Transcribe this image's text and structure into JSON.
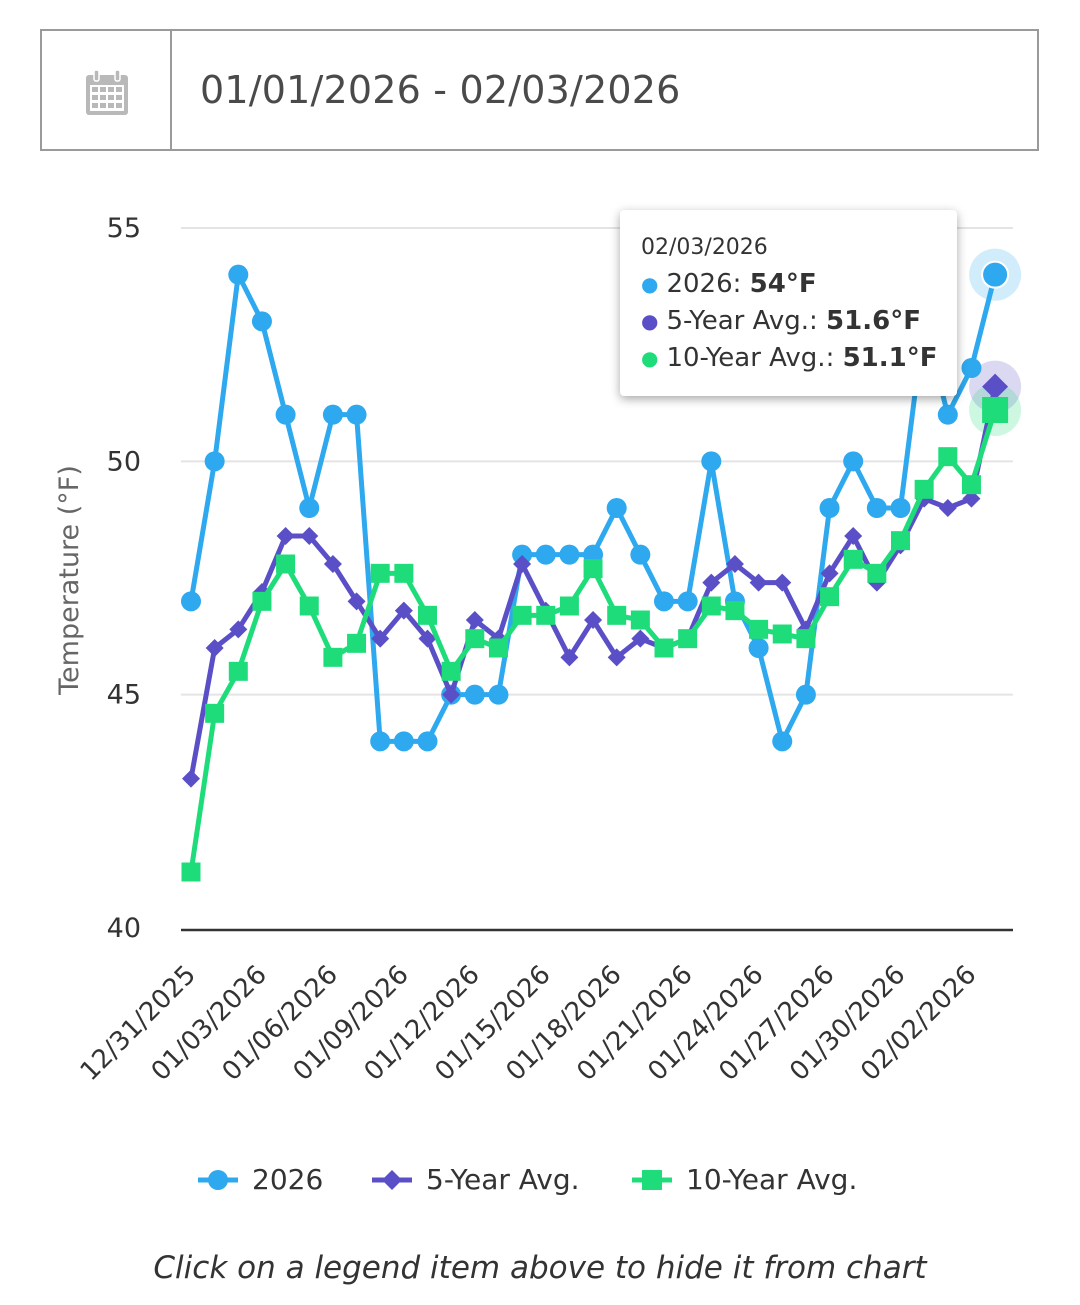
{
  "date_range": {
    "value": "01/01/2026 - 02/03/2026",
    "icon": "calendar-icon"
  },
  "chart_data": {
    "type": "line",
    "ylabel": "Temperature (°F)",
    "xlabel": "",
    "ylim": [
      40,
      55
    ],
    "yticks": [
      40,
      45,
      50,
      55
    ],
    "x": [
      "12/31/2025",
      "01/01/2026",
      "01/02/2026",
      "01/03/2026",
      "01/04/2026",
      "01/05/2026",
      "01/06/2026",
      "01/07/2026",
      "01/08/2026",
      "01/09/2026",
      "01/10/2026",
      "01/11/2026",
      "01/12/2026",
      "01/13/2026",
      "01/14/2026",
      "01/15/2026",
      "01/16/2026",
      "01/17/2026",
      "01/18/2026",
      "01/19/2026",
      "01/20/2026",
      "01/21/2026",
      "01/22/2026",
      "01/23/2026",
      "01/24/2026",
      "01/25/2026",
      "01/26/2026",
      "01/27/2026",
      "01/28/2026",
      "01/29/2026",
      "01/30/2026",
      "01/31/2026",
      "02/01/2026",
      "02/02/2026",
      "02/03/2026"
    ],
    "x_tick_labels": [
      "12/31/2025",
      "01/03/2026",
      "01/06/2026",
      "01/09/2026",
      "01/12/2026",
      "01/15/2026",
      "01/18/2026",
      "01/21/2026",
      "01/24/2026",
      "01/27/2026",
      "01/30/2026",
      "02/02/2026"
    ],
    "series": [
      {
        "name": "2026",
        "color": "#2ea8ee",
        "marker": "circle",
        "values": [
          47,
          50,
          54,
          53,
          51,
          49,
          51,
          51,
          44,
          44,
          44,
          45,
          45,
          45,
          48,
          48,
          48,
          48,
          49,
          48,
          47,
          47,
          50,
          47,
          46,
          44,
          45,
          49,
          50,
          49,
          49,
          53,
          51,
          52,
          54
        ]
      },
      {
        "name": "5-Year Avg.",
        "color": "#5a4fc6",
        "marker": "diamond",
        "values": [
          43.2,
          46,
          46.4,
          47.2,
          48.4,
          48.4,
          47.8,
          47,
          46.2,
          46.8,
          46.2,
          45,
          46.6,
          46.2,
          47.8,
          46.8,
          45.8,
          46.6,
          45.8,
          46.2,
          46,
          46.2,
          47.4,
          47.8,
          47.4,
          47.4,
          46.4,
          47.6,
          48.4,
          47.4,
          48.2,
          49.2,
          49,
          49.2,
          51.6
        ]
      },
      {
        "name": "10-Year Avg.",
        "color": "#1fdc7a",
        "marker": "square",
        "values": [
          41.2,
          44.6,
          45.5,
          47,
          47.8,
          46.9,
          45.8,
          46.1,
          47.6,
          47.6,
          46.7,
          45.5,
          46.2,
          46,
          46.7,
          46.7,
          46.9,
          47.7,
          46.7,
          46.6,
          46,
          46.2,
          46.9,
          46.8,
          46.4,
          46.3,
          46.2,
          47.1,
          47.9,
          47.6,
          48.3,
          49.4,
          50.1,
          49.5,
          51.1
        ]
      }
    ],
    "grid": true,
    "legend_position": "bottom"
  },
  "tooltip": {
    "date": "02/03/2026",
    "rows": [
      {
        "label": "2026: ",
        "value": "54°F",
        "color": "#2ea8ee"
      },
      {
        "label": "5-Year Avg.: ",
        "value": "51.6°F",
        "color": "#5a4fc6"
      },
      {
        "label": "10-Year Avg.: ",
        "value": "51.1°F",
        "color": "#1fdc7a"
      }
    ]
  },
  "legend": [
    "2026",
    "5-Year Avg.",
    "10-Year Avg."
  ],
  "footer_note": "Click on a legend item above to hide it from chart"
}
